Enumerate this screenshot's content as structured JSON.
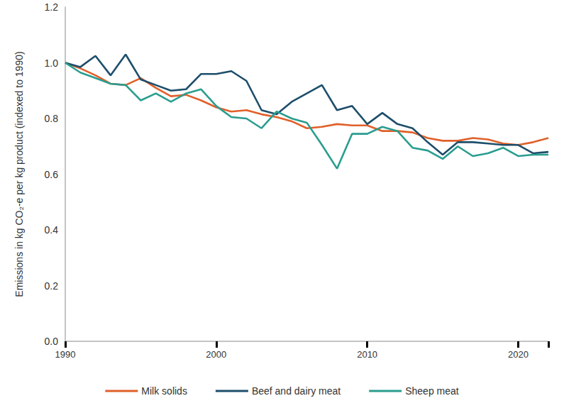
{
  "chart_data": {
    "type": "line",
    "y_label": "Emissions in kg CO₂-e per kg product (indexed to 1990)",
    "x": [
      1990,
      1991,
      1992,
      1993,
      1994,
      1995,
      1996,
      1997,
      1998,
      1999,
      2000,
      2001,
      2002,
      2003,
      2004,
      2005,
      2006,
      2007,
      2008,
      2009,
      2010,
      2011,
      2012,
      2013,
      2014,
      2015,
      2016,
      2017,
      2018,
      2019,
      2020,
      2021,
      2022
    ],
    "series": [
      {
        "name": "Milk solids",
        "color": "#e0602a",
        "values": [
          1.0,
          0.98,
          0.955,
          0.925,
          0.92,
          0.945,
          0.91,
          0.88,
          0.885,
          0.865,
          0.84,
          0.825,
          0.83,
          0.815,
          0.805,
          0.79,
          0.765,
          0.77,
          0.78,
          0.775,
          0.775,
          0.755,
          0.755,
          0.75,
          0.73,
          0.72,
          0.72,
          0.73,
          0.725,
          0.71,
          0.705,
          0.715,
          0.73
        ]
      },
      {
        "name": "Beef and dairy meat",
        "color": "#1d4e6b",
        "values": [
          1.0,
          0.985,
          1.025,
          0.955,
          1.03,
          0.94,
          0.92,
          0.9,
          0.905,
          0.96,
          0.96,
          0.97,
          0.935,
          0.83,
          0.815,
          0.86,
          0.89,
          0.92,
          0.83,
          0.845,
          0.78,
          0.82,
          0.78,
          0.765,
          0.715,
          0.67,
          0.715,
          0.715,
          0.71,
          0.705,
          0.705,
          0.675,
          0.68
        ]
      },
      {
        "name": "Sheep meat",
        "color": "#2a9d8f",
        "values": [
          1.0,
          0.965,
          0.945,
          0.925,
          0.92,
          0.865,
          0.89,
          0.86,
          0.89,
          0.905,
          0.845,
          0.805,
          0.8,
          0.765,
          0.825,
          0.8,
          0.785,
          0.705,
          0.62,
          0.745,
          0.745,
          0.77,
          0.755,
          0.695,
          0.685,
          0.655,
          0.7,
          0.665,
          0.675,
          0.695,
          0.665,
          0.67,
          0.67
        ]
      }
    ],
    "xlim": [
      1990,
      2022
    ],
    "xticks": [
      1990,
      2000,
      2010,
      2020
    ],
    "ylim": [
      0,
      1.2
    ],
    "yticks": [
      {
        "value": 0,
        "label": "0.0"
      },
      {
        "value": 0.2,
        "label": "0.2"
      },
      {
        "value": 0.4,
        "label": "0.4"
      },
      {
        "value": 0.6,
        "label": "0.6"
      },
      {
        "value": 0.8,
        "label": "0.8"
      },
      {
        "value": 1,
        "label": "1.0"
      },
      {
        "value": 1.2,
        "label": "1.2"
      }
    ],
    "grid": false,
    "legend": "bottom"
  }
}
